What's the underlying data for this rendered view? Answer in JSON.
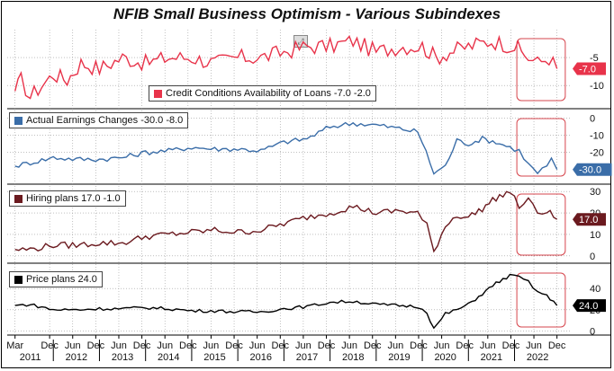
{
  "title": "NFIB Small Business Optimism - Various Subindexes",
  "chart_data": [
    {
      "type": "line",
      "name": "credit",
      "legend": "Credit Conditions Availability of Loans -7.0  -2.0",
      "color": "#e8334a",
      "last_label": "-7.0",
      "ylim": [
        -14,
        0
      ],
      "yticks": [
        -5,
        -10
      ],
      "ytick_labels": [
        "-5",
        "-10"
      ],
      "anchors": [
        [
          2011.17,
          -11
        ],
        [
          2011.3,
          -9
        ],
        [
          2011.5,
          -12
        ],
        [
          2011.75,
          -10
        ],
        [
          2012.0,
          -8
        ],
        [
          2012.3,
          -9
        ],
        [
          2012.6,
          -6
        ],
        [
          2013.0,
          -7
        ],
        [
          2013.5,
          -5
        ],
        [
          2014.0,
          -6
        ],
        [
          2014.5,
          -5
        ],
        [
          2015.0,
          -5
        ],
        [
          2015.5,
          -6
        ],
        [
          2016.0,
          -5
        ],
        [
          2016.5,
          -5
        ],
        [
          2017.0,
          -4
        ],
        [
          2017.5,
          -3
        ],
        [
          2018.0,
          -3
        ],
        [
          2018.5,
          -2
        ],
        [
          2019.0,
          -4
        ],
        [
          2019.5,
          -3
        ],
        [
          2020.0,
          -3
        ],
        [
          2020.3,
          -5
        ],
        [
          2020.6,
          -4
        ],
        [
          2021.0,
          -3
        ],
        [
          2021.5,
          -2
        ],
        [
          2022.0,
          -3
        ],
        [
          2022.3,
          -5
        ],
        [
          2022.5,
          -6
        ],
        [
          2022.75,
          -5
        ],
        [
          2022.92,
          -7
        ]
      ]
    },
    {
      "type": "line",
      "name": "earnings",
      "legend": "Actual Earnings Changes -30.0  -8.0",
      "color": "#3a6da8",
      "last_label": "-30.0",
      "ylim": [
        -38,
        5
      ],
      "yticks": [
        0,
        -10,
        -20
      ],
      "ytick_labels": [
        "0",
        "-10",
        "-20"
      ],
      "anchors": [
        [
          2011.17,
          -28
        ],
        [
          2011.5,
          -26
        ],
        [
          2012.0,
          -23
        ],
        [
          2012.5,
          -24
        ],
        [
          2013.0,
          -24
        ],
        [
          2013.5,
          -23
        ],
        [
          2014.0,
          -20
        ],
        [
          2014.5,
          -19
        ],
        [
          2015.0,
          -17
        ],
        [
          2015.5,
          -18
        ],
        [
          2016.0,
          -18
        ],
        [
          2016.5,
          -19
        ],
        [
          2017.0,
          -14
        ],
        [
          2017.5,
          -12
        ],
        [
          2018.0,
          -5
        ],
        [
          2018.5,
          -3
        ],
        [
          2019.0,
          -4
        ],
        [
          2019.5,
          -6
        ],
        [
          2019.9,
          -8
        ],
        [
          2020.0,
          -14
        ],
        [
          2020.25,
          -32
        ],
        [
          2020.5,
          -28
        ],
        [
          2020.75,
          -13
        ],
        [
          2021.0,
          -15
        ],
        [
          2021.3,
          -12
        ],
        [
          2021.6,
          -14
        ],
        [
          2021.9,
          -17
        ],
        [
          2022.1,
          -19
        ],
        [
          2022.3,
          -27
        ],
        [
          2022.5,
          -32
        ],
        [
          2022.7,
          -28
        ],
        [
          2022.8,
          -24
        ],
        [
          2022.92,
          -30
        ]
      ]
    },
    {
      "type": "line",
      "name": "hiring",
      "legend": "Hiring plans 17.0  -1.0",
      "color": "#6b1a1f",
      "last_label": "17.0",
      "ylim": [
        -3,
        33
      ],
      "yticks": [
        30,
        20,
        10,
        0
      ],
      "ytick_labels": [
        "30",
        "20",
        "10",
        "0"
      ],
      "anchors": [
        [
          2011.17,
          3
        ],
        [
          2011.5,
          3
        ],
        [
          2012.0,
          5
        ],
        [
          2012.5,
          5
        ],
        [
          2013.0,
          6
        ],
        [
          2013.5,
          6
        ],
        [
          2014.0,
          9
        ],
        [
          2014.5,
          10
        ],
        [
          2015.0,
          11
        ],
        [
          2015.5,
          12
        ],
        [
          2016.0,
          11
        ],
        [
          2016.5,
          12
        ],
        [
          2017.0,
          15
        ],
        [
          2017.5,
          18
        ],
        [
          2018.0,
          20
        ],
        [
          2018.5,
          23
        ],
        [
          2019.0,
          20
        ],
        [
          2019.5,
          21
        ],
        [
          2019.9,
          20
        ],
        [
          2020.1,
          14
        ],
        [
          2020.25,
          2
        ],
        [
          2020.5,
          14
        ],
        [
          2020.75,
          19
        ],
        [
          2021.0,
          18
        ],
        [
          2021.3,
          22
        ],
        [
          2021.6,
          27
        ],
        [
          2021.9,
          30
        ],
        [
          2022.1,
          23
        ],
        [
          2022.3,
          26
        ],
        [
          2022.5,
          20
        ],
        [
          2022.7,
          21
        ],
        [
          2022.92,
          17
        ]
      ]
    },
    {
      "type": "line",
      "name": "price",
      "legend": "Price plans 24.0",
      "color": "#000000",
      "last_label": "24.0",
      "ylim": [
        -3,
        63
      ],
      "yticks": [
        40,
        20,
        0
      ],
      "ytick_labels": [
        "40",
        "20",
        "0"
      ],
      "anchors": [
        [
          2011.17,
          24
        ],
        [
          2011.5,
          25
        ],
        [
          2012.0,
          20
        ],
        [
          2012.5,
          20
        ],
        [
          2013.0,
          21
        ],
        [
          2013.5,
          21
        ],
        [
          2014.0,
          22
        ],
        [
          2014.5,
          21
        ],
        [
          2015.0,
          19
        ],
        [
          2015.5,
          19
        ],
        [
          2016.0,
          18
        ],
        [
          2016.5,
          18
        ],
        [
          2017.0,
          21
        ],
        [
          2017.5,
          23
        ],
        [
          2018.0,
          27
        ],
        [
          2018.5,
          28
        ],
        [
          2019.0,
          25
        ],
        [
          2019.5,
          24
        ],
        [
          2019.9,
          23
        ],
        [
          2020.1,
          18
        ],
        [
          2020.25,
          2
        ],
        [
          2020.5,
          16
        ],
        [
          2020.75,
          20
        ],
        [
          2021.0,
          25
        ],
        [
          2021.3,
          35
        ],
        [
          2021.6,
          45
        ],
        [
          2021.9,
          52
        ],
        [
          2022.1,
          51
        ],
        [
          2022.3,
          46
        ],
        [
          2022.5,
          37
        ],
        [
          2022.7,
          33
        ],
        [
          2022.92,
          24
        ]
      ]
    }
  ],
  "x_axis": {
    "range": [
      2011.0,
      2023.2
    ],
    "month_ticks": [
      {
        "x": 2011.17,
        "label": "Mar"
      },
      {
        "x": 2011.92,
        "label": "Dec"
      },
      {
        "x": 2012.42,
        "label": "Jun"
      },
      {
        "x": 2012.92,
        "label": "Dec"
      },
      {
        "x": 2013.42,
        "label": "Jun"
      },
      {
        "x": 2013.92,
        "label": "Dec"
      },
      {
        "x": 2014.42,
        "label": "Jun"
      },
      {
        "x": 2014.92,
        "label": "Dec"
      },
      {
        "x": 2015.42,
        "label": "Jun"
      },
      {
        "x": 2015.92,
        "label": "Dec"
      },
      {
        "x": 2016.42,
        "label": "Jun"
      },
      {
        "x": 2016.92,
        "label": "Dec"
      },
      {
        "x": 2017.42,
        "label": "Jun"
      },
      {
        "x": 2017.92,
        "label": "Dec"
      },
      {
        "x": 2018.42,
        "label": "Jun"
      },
      {
        "x": 2018.92,
        "label": "Dec"
      },
      {
        "x": 2019.42,
        "label": "Jun"
      },
      {
        "x": 2019.92,
        "label": "Dec"
      },
      {
        "x": 2020.42,
        "label": "Jun"
      },
      {
        "x": 2020.92,
        "label": "Dec"
      },
      {
        "x": 2021.42,
        "label": "Jun"
      },
      {
        "x": 2021.92,
        "label": "Dec"
      },
      {
        "x": 2022.42,
        "label": "Jun"
      },
      {
        "x": 2022.92,
        "label": "Dec"
      }
    ],
    "year_labels": [
      "2011",
      "2012",
      "2013",
      "2014",
      "2015",
      "2016",
      "2017",
      "2018",
      "2019",
      "2020",
      "2021",
      "2022"
    ]
  },
  "highlight_range": [
    2022.05,
    2023.1
  ],
  "colors": {
    "grid": "#9a9a9a",
    "highlight_box": "#d6454c",
    "axis": "#000000"
  }
}
